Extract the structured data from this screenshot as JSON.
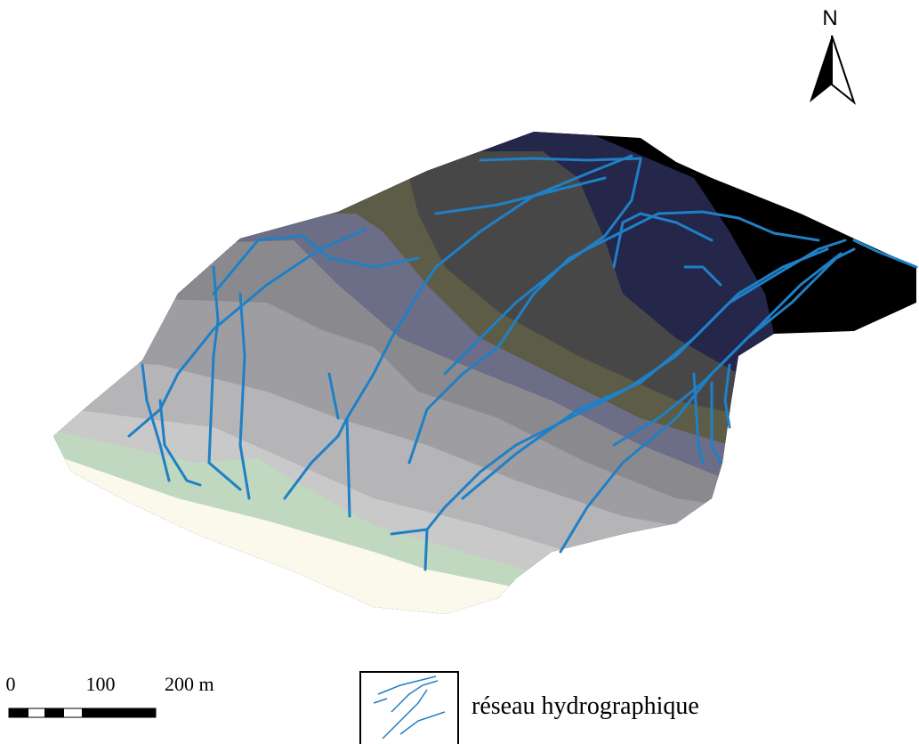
{
  "north_arrow": {
    "label": "N"
  },
  "scale_bar": {
    "labels": [
      "0",
      "100",
      "200 m"
    ]
  },
  "legend": {
    "label": "réseau hydrographique"
  }
}
